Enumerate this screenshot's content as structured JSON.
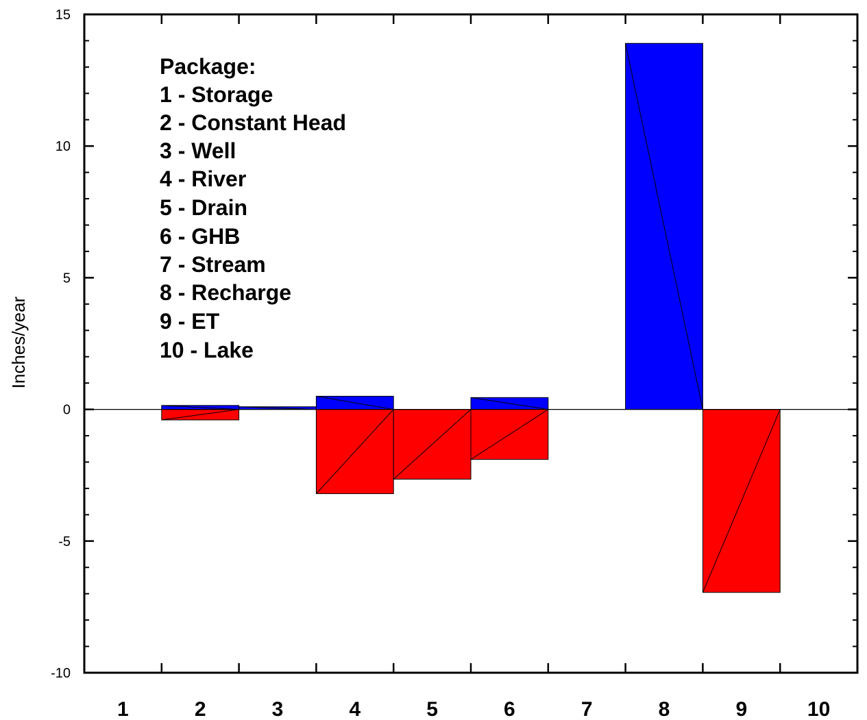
{
  "chart_data": {
    "type": "bar",
    "ylabel": "Inches/year",
    "xlabel": "",
    "ylim": [
      -10,
      15
    ],
    "yticks": [
      "15",
      "10",
      "5",
      "0",
      "-5",
      "-10"
    ],
    "ytick_values": [
      15,
      10,
      5,
      0,
      -5,
      -10
    ],
    "categories": [
      "1",
      "2",
      "3",
      "4",
      "5",
      "6",
      "7",
      "8",
      "9",
      "10"
    ],
    "series": [
      {
        "color": "#0000ff",
        "values": [
          0,
          0.15,
          0.1,
          0.5,
          0,
          0.45,
          0,
          13.9,
          0,
          0
        ]
      },
      {
        "color": "#ff0000",
        "values": [
          0,
          -0.4,
          0,
          -3.2,
          -2.65,
          -1.9,
          0,
          0,
          -6.95,
          0
        ]
      }
    ],
    "legend_block": {
      "title": "Package:",
      "entries": [
        "1 - Storage",
        "2 - Constant Head",
        "3 - Well",
        "4 - River",
        "5 - Drain",
        "6 - GHB",
        "7 - Stream",
        "8 - Recharge",
        "9 - ET",
        "10 - Lake"
      ]
    },
    "grid": false,
    "legend_position": "top-left"
  }
}
